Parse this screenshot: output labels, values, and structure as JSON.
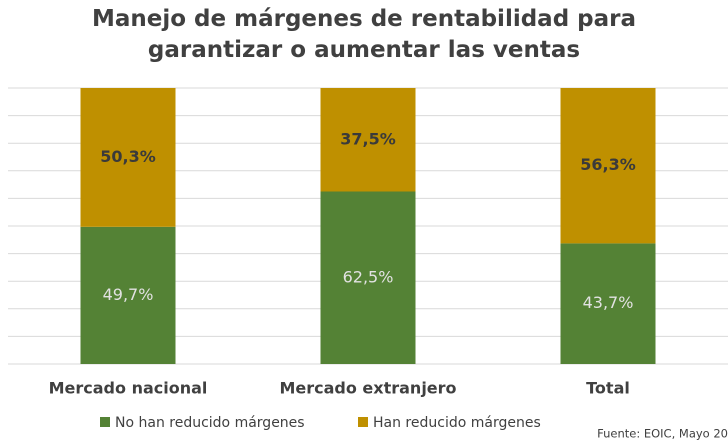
{
  "chart_data": {
    "type": "stacked_bar",
    "title": "Manejo de márgenes de rentabilidad para garantizar o aumentar las ventas",
    "categories": [
      "Mercado nacional",
      "Mercado extranjero",
      "Total"
    ],
    "series": [
      {
        "name": "No han reducido márgenes",
        "color": "#548235",
        "values": [
          49.7,
          62.5,
          43.7
        ],
        "value_labels": [
          "49,7%",
          "62,5%",
          "43,7%"
        ]
      },
      {
        "name": "Han reducido márgenes",
        "color": "#bf9000",
        "values": [
          50.3,
          37.5,
          56.3
        ],
        "value_labels": [
          "50,3%",
          "37,5%",
          "56,3%"
        ]
      }
    ],
    "ylim": [
      0,
      100
    ],
    "yticks": [
      0,
      10,
      20,
      30,
      40,
      50,
      60,
      70,
      80,
      90,
      100
    ],
    "grid": true,
    "legend": "bottom",
    "source": "Fuente: EOIC, Mayo 20"
  }
}
